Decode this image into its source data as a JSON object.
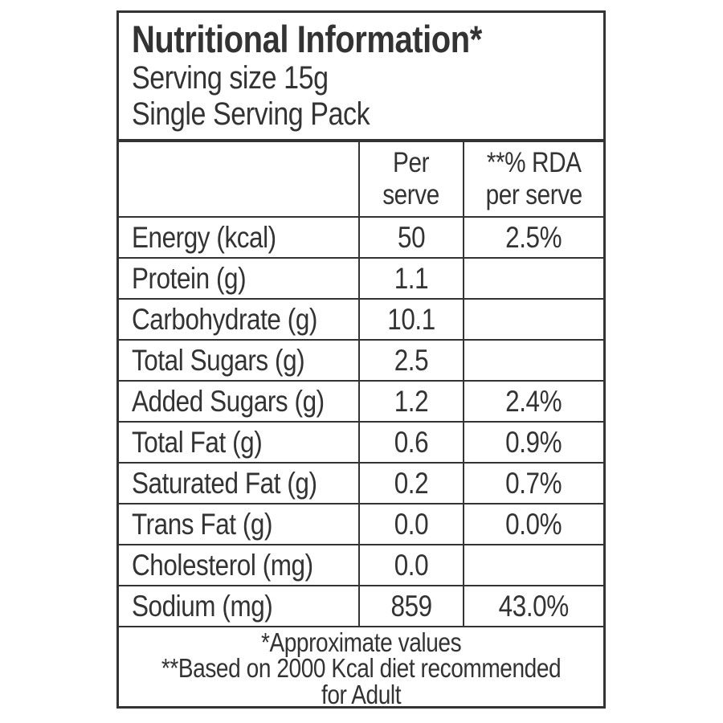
{
  "page": {
    "background": "#ffffff"
  },
  "colors": {
    "border": "#333333",
    "text": "#333333"
  },
  "label": {
    "title": "Nutritional Information*",
    "serving_size": "Serving size 15g",
    "pack_type": "Single Serving Pack"
  },
  "table": {
    "columns": {
      "item": "",
      "per_serve": "Per\nserve",
      "rda_per_serve": "**% RDA\nper serve"
    },
    "rows": [
      {
        "label": "Energy (kcal)",
        "per_serve": "50",
        "rda": "2.5%"
      },
      {
        "label": "Protein (g)",
        "per_serve": "1.1",
        "rda": ""
      },
      {
        "label": "Carbohydrate (g)",
        "per_serve": "10.1",
        "rda": ""
      },
      {
        "label": "Total Sugars (g)",
        "per_serve": "2.5",
        "rda": ""
      },
      {
        "label": "Added Sugars (g)",
        "per_serve": "1.2",
        "rda": "2.4%"
      },
      {
        "label": "Total Fat (g)",
        "per_serve": "0.6",
        "rda": "0.9%"
      },
      {
        "label": "Saturated Fat (g)",
        "per_serve": "0.2",
        "rda": "0.7%"
      },
      {
        "label": "Trans Fat (g)",
        "per_serve": "0.0",
        "rda": "0.0%"
      },
      {
        "label": "Cholesterol (mg)",
        "per_serve": "0.0",
        "rda": ""
      },
      {
        "label": "Sodium (mg)",
        "per_serve": "859",
        "rda": "43.0%"
      }
    ]
  },
  "footnotes": {
    "approximate": "*Approximate values",
    "rda_basis": "**Based on 2000 Kcal diet recommended\nfor Adult"
  }
}
